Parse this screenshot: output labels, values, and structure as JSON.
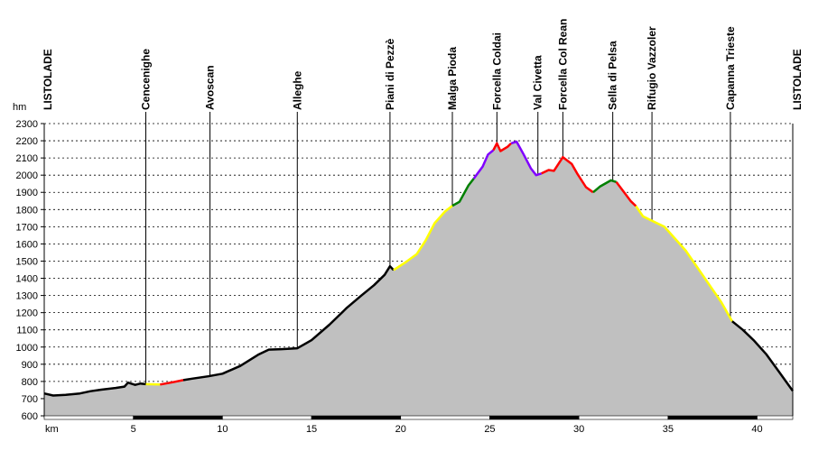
{
  "chart_data": {
    "type": "area",
    "ylabel": "hm",
    "xlabel": "km",
    "xlim": [
      0,
      42
    ],
    "ylim": [
      600,
      2300
    ],
    "yticks": [
      600,
      700,
      800,
      900,
      1000,
      1100,
      1200,
      1300,
      1400,
      1500,
      1600,
      1700,
      1800,
      1900,
      2000,
      2100,
      2200,
      2300
    ],
    "xticks": [
      5,
      10,
      15,
      20,
      25,
      30,
      35,
      40
    ],
    "grid": true,
    "fill_color": "#c0c0c0",
    "waypoints": [
      {
        "name": "LISTOLADE",
        "km": 0
      },
      {
        "name": "Cencenighe",
        "km": 5.7
      },
      {
        "name": "Avoscan",
        "km": 9.3
      },
      {
        "name": "Alleghe",
        "km": 14.2
      },
      {
        "name": "Piani di Pezzè",
        "km": 19.4
      },
      {
        "name": "Malga Pioda",
        "km": 22.9
      },
      {
        "name": "Forcella Coldai",
        "km": 25.4
      },
      {
        "name": "Val Civetta",
        "km": 27.7
      },
      {
        "name": "Forcella Col Rean",
        "km": 29.1
      },
      {
        "name": "Sella di Pelsa",
        "km": 31.9
      },
      {
        "name": "Rifugio Vazzoler",
        "km": 34.1
      },
      {
        "name": "Capanna Trieste",
        "km": 38.5
      },
      {
        "name": "LISTOLADE",
        "km": 42
      }
    ],
    "profile": [
      [
        0,
        730
      ],
      [
        0.5,
        718
      ],
      [
        1.2,
        722
      ],
      [
        2,
        730
      ],
      [
        2.6,
        743
      ],
      [
        3.2,
        752
      ],
      [
        4,
        762
      ],
      [
        4.5,
        770
      ],
      [
        4.7,
        793
      ],
      [
        5.1,
        780
      ],
      [
        5.4,
        788
      ],
      [
        5.7,
        784
      ],
      [
        6.5,
        782
      ],
      [
        7.2,
        795
      ],
      [
        7.8,
        808
      ],
      [
        8.3,
        816
      ],
      [
        9.2,
        830
      ],
      [
        10,
        845
      ],
      [
        11,
        890
      ],
      [
        12,
        955
      ],
      [
        12.6,
        985
      ],
      [
        13.3,
        988
      ],
      [
        14.2,
        993
      ],
      [
        15,
        1040
      ],
      [
        16,
        1130
      ],
      [
        17,
        1230
      ],
      [
        17.8,
        1300
      ],
      [
        18.5,
        1360
      ],
      [
        19.1,
        1420
      ],
      [
        19.4,
        1470
      ],
      [
        19.6,
        1448
      ],
      [
        20.3,
        1495
      ],
      [
        20.9,
        1540
      ],
      [
        21.4,
        1620
      ],
      [
        21.9,
        1720
      ],
      [
        22.5,
        1790
      ],
      [
        22.9,
        1822
      ],
      [
        23.3,
        1845
      ],
      [
        23.8,
        1940
      ],
      [
        24.1,
        1980
      ],
      [
        24.6,
        2050
      ],
      [
        24.9,
        2120
      ],
      [
        25.2,
        2145
      ],
      [
        25.4,
        2185
      ],
      [
        25.6,
        2140
      ],
      [
        26,
        2165
      ],
      [
        26.2,
        2185
      ],
      [
        26.5,
        2195
      ],
      [
        26.9,
        2120
      ],
      [
        27.3,
        2040
      ],
      [
        27.6,
        2000
      ],
      [
        27.9,
        2010
      ],
      [
        28.3,
        2030
      ],
      [
        28.6,
        2025
      ],
      [
        29.1,
        2105
      ],
      [
        29.6,
        2065
      ],
      [
        29.9,
        2010
      ],
      [
        30.4,
        1930
      ],
      [
        30.8,
        1900
      ],
      [
        31.2,
        1935
      ],
      [
        31.8,
        1970
      ],
      [
        32.1,
        1960
      ],
      [
        32.5,
        1905
      ],
      [
        32.9,
        1850
      ],
      [
        33.2,
        1820
      ],
      [
        33.6,
        1760
      ],
      [
        34.1,
        1735
      ],
      [
        34.8,
        1700
      ],
      [
        36,
        1560
      ],
      [
        37,
        1410
      ],
      [
        38,
        1260
      ],
      [
        38.6,
        1150
      ],
      [
        39.2,
        1100
      ],
      [
        39.8,
        1040
      ],
      [
        40.5,
        960
      ],
      [
        41.2,
        860
      ],
      [
        42,
        745
      ]
    ],
    "segments": [
      {
        "from": 0,
        "to": 5.7,
        "color": "#000000"
      },
      {
        "from": 5.7,
        "to": 6.5,
        "color": "#ffff00"
      },
      {
        "from": 6.5,
        "to": 7.8,
        "color": "#ff0000"
      },
      {
        "from": 7.8,
        "to": 19.6,
        "color": "#000000"
      },
      {
        "from": 19.6,
        "to": 22.9,
        "color": "#ffff00"
      },
      {
        "from": 22.9,
        "to": 24.1,
        "color": "#008000"
      },
      {
        "from": 24.1,
        "to": 25.2,
        "color": "#8000ff"
      },
      {
        "from": 25.2,
        "to": 26.2,
        "color": "#ff0000"
      },
      {
        "from": 26.2,
        "to": 27.9,
        "color": "#8000ff"
      },
      {
        "from": 27.9,
        "to": 30.8,
        "color": "#ff0000"
      },
      {
        "from": 30.8,
        "to": 32.1,
        "color": "#008000"
      },
      {
        "from": 32.1,
        "to": 33.2,
        "color": "#ff0000"
      },
      {
        "from": 33.2,
        "to": 38.6,
        "color": "#ffff00"
      },
      {
        "from": 38.6,
        "to": 42,
        "color": "#000000"
      }
    ]
  }
}
